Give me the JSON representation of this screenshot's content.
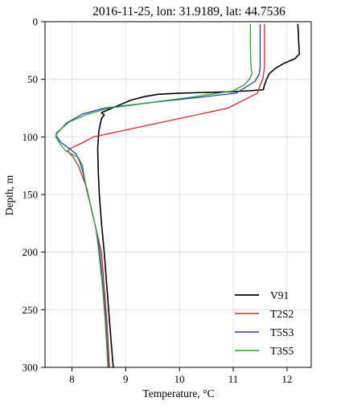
{
  "chart_data": {
    "type": "line",
    "title": "2016-11-25, lon: 31.9189,  lat: 44.7536",
    "xlabel": "Temperature, °C",
    "ylabel": "Depth, m",
    "xlim": [
      7.5,
      12.45
    ],
    "ylim": [
      0,
      300
    ],
    "y_inverted": true,
    "xticks": [
      8,
      9,
      10,
      11,
      12
    ],
    "yticks": [
      0,
      50,
      100,
      150,
      200,
      250,
      300
    ],
    "grid": true,
    "legend_position": "lower-right",
    "series": [
      {
        "name": "V91",
        "color": "#000000",
        "points": [
          [
            12.2,
            2
          ],
          [
            12.21,
            10
          ],
          [
            12.22,
            20
          ],
          [
            12.23,
            28
          ],
          [
            12.15,
            32
          ],
          [
            11.95,
            36
          ],
          [
            11.8,
            40
          ],
          [
            11.67,
            45
          ],
          [
            11.62,
            50
          ],
          [
            11.58,
            55
          ],
          [
            11.56,
            59
          ],
          [
            11.3,
            60
          ],
          [
            10.8,
            61
          ],
          [
            10.0,
            62
          ],
          [
            9.6,
            63
          ],
          [
            9.35,
            65
          ],
          [
            9.1,
            68
          ],
          [
            8.9,
            72
          ],
          [
            8.7,
            76
          ],
          [
            8.55,
            79
          ],
          [
            8.6,
            81
          ],
          [
            8.55,
            84
          ],
          [
            8.53,
            88
          ],
          [
            8.5,
            95
          ],
          [
            8.48,
            110
          ],
          [
            8.49,
            130
          ],
          [
            8.51,
            150
          ],
          [
            8.55,
            175
          ],
          [
            8.6,
            200
          ],
          [
            8.65,
            230
          ],
          [
            8.7,
            260
          ],
          [
            8.75,
            290
          ],
          [
            8.77,
            300
          ]
        ]
      },
      {
        "name": "T2S2",
        "color": "#d62728",
        "points": [
          [
            11.58,
            2
          ],
          [
            11.58,
            20
          ],
          [
            11.58,
            40
          ],
          [
            11.55,
            50
          ],
          [
            11.5,
            55
          ],
          [
            11.45,
            62
          ],
          [
            10.9,
            75
          ],
          [
            10.1,
            83
          ],
          [
            9.4,
            90
          ],
          [
            8.6,
            98
          ],
          [
            8.4,
            100
          ],
          [
            8.2,
            105
          ],
          [
            7.97,
            110
          ],
          [
            7.92,
            112
          ],
          [
            8.03,
            118
          ],
          [
            8.12,
            125
          ],
          [
            8.2,
            135
          ],
          [
            8.28,
            145
          ],
          [
            8.35,
            160
          ],
          [
            8.45,
            180
          ],
          [
            8.55,
            200
          ],
          [
            8.6,
            230
          ],
          [
            8.65,
            260
          ],
          [
            8.7,
            300
          ]
        ]
      },
      {
        "name": "T5S3",
        "color": "#1f3fbf",
        "points": [
          [
            11.5,
            2
          ],
          [
            11.5,
            20
          ],
          [
            11.5,
            40
          ],
          [
            11.48,
            46
          ],
          [
            11.4,
            52
          ],
          [
            11.05,
            62
          ],
          [
            10.3,
            66
          ],
          [
            9.5,
            70
          ],
          [
            8.6,
            75
          ],
          [
            8.2,
            80
          ],
          [
            7.9,
            88
          ],
          [
            7.7,
            98
          ],
          [
            7.72,
            100
          ],
          [
            7.8,
            105
          ],
          [
            7.95,
            110
          ],
          [
            8.08,
            115
          ],
          [
            8.15,
            122
          ],
          [
            8.2,
            130
          ],
          [
            8.27,
            145
          ],
          [
            8.35,
            160
          ],
          [
            8.45,
            180
          ],
          [
            8.52,
            200
          ],
          [
            8.58,
            230
          ],
          [
            8.63,
            260
          ],
          [
            8.68,
            300
          ]
        ]
      },
      {
        "name": "T3S5",
        "color": "#2ca02c",
        "points": [
          [
            11.32,
            2
          ],
          [
            11.32,
            20
          ],
          [
            11.33,
            40
          ],
          [
            11.35,
            45
          ],
          [
            11.3,
            50
          ],
          [
            11.2,
            55
          ],
          [
            11.0,
            60
          ],
          [
            10.3,
            65
          ],
          [
            9.5,
            70
          ],
          [
            8.7,
            75
          ],
          [
            8.3,
            80
          ],
          [
            7.95,
            87
          ],
          [
            7.72,
            96
          ],
          [
            7.7,
            100
          ],
          [
            7.78,
            106
          ],
          [
            7.88,
            112
          ],
          [
            8.12,
            118
          ],
          [
            8.2,
            125
          ],
          [
            8.23,
            135
          ],
          [
            8.27,
            145
          ],
          [
            8.35,
            160
          ],
          [
            8.45,
            180
          ],
          [
            8.5,
            200
          ],
          [
            8.57,
            230
          ],
          [
            8.62,
            260
          ],
          [
            8.67,
            300
          ]
        ]
      }
    ]
  }
}
